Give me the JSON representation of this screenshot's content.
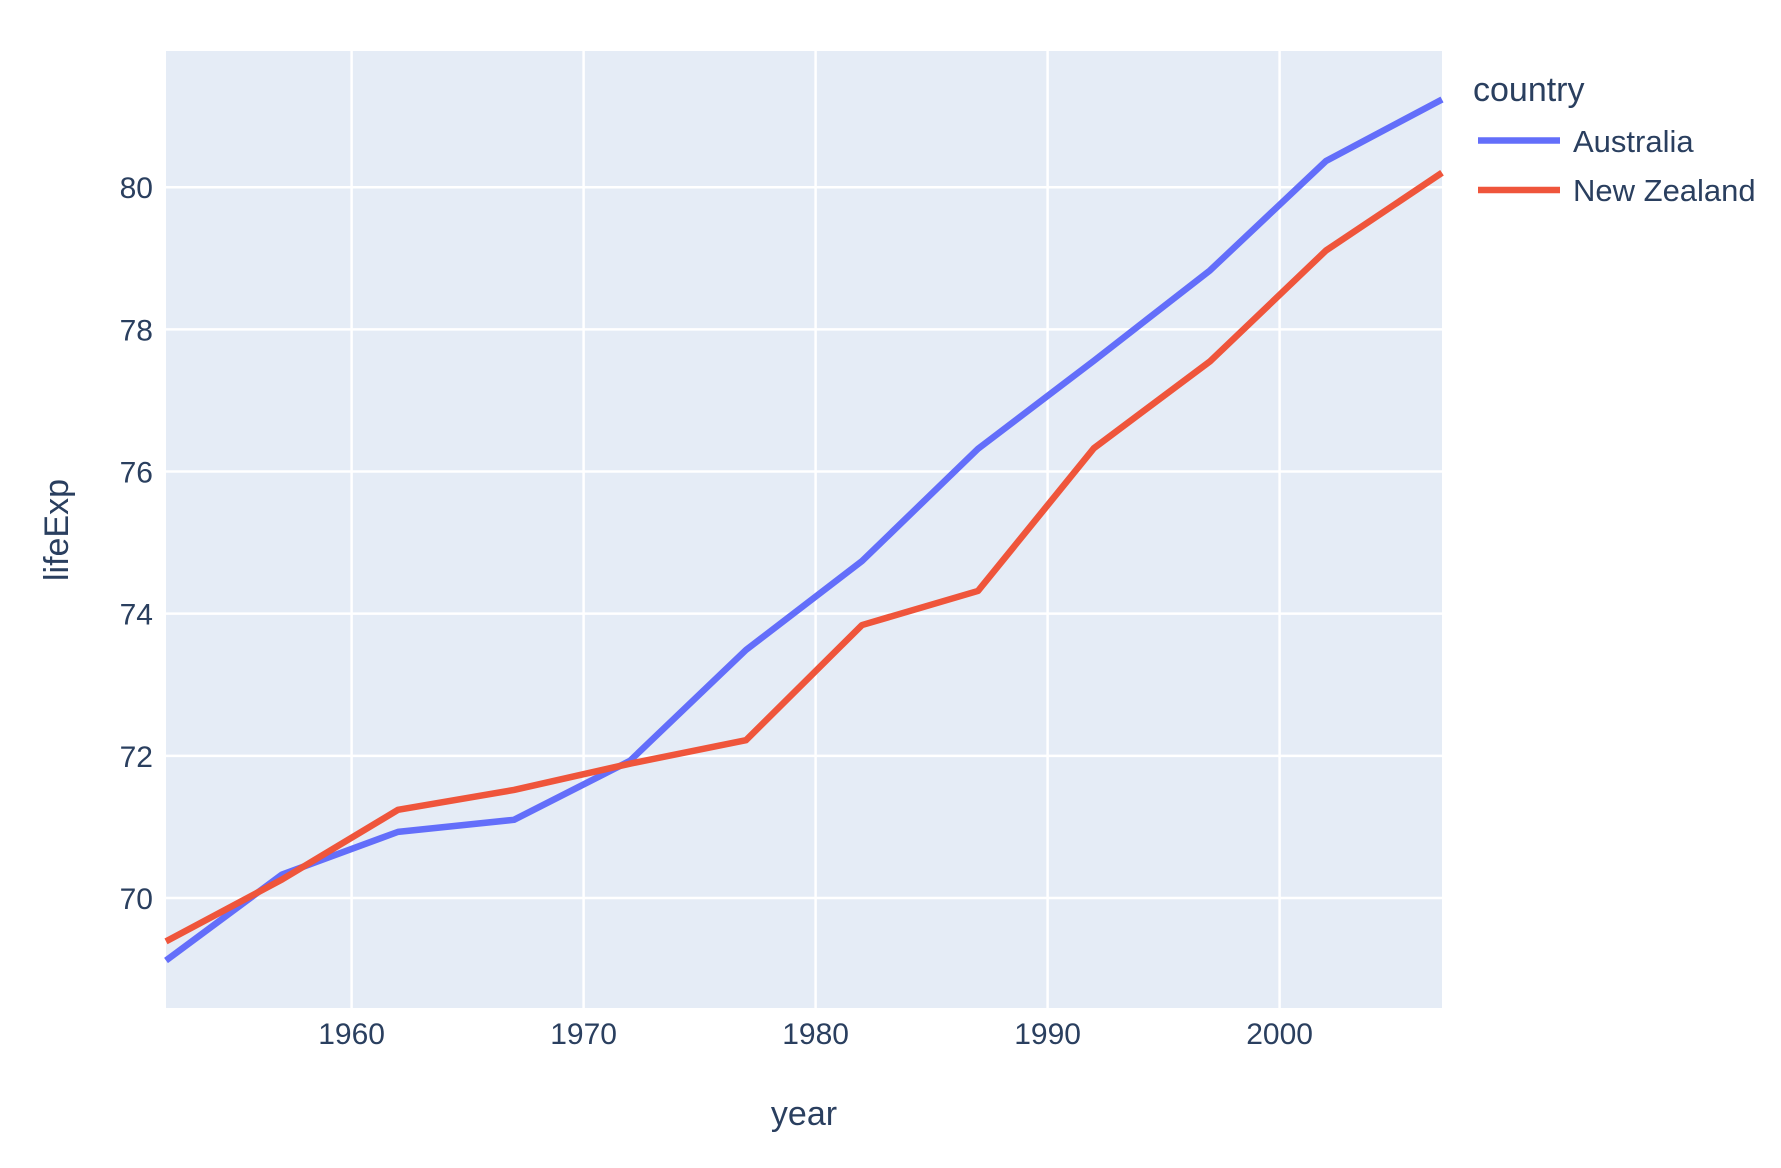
{
  "chart_data": {
    "type": "line",
    "title": "",
    "xlabel": "year",
    "ylabel": "lifeExp",
    "legend_title": "country",
    "legend_position": "right",
    "grid": true,
    "x": [
      1952,
      1957,
      1962,
      1967,
      1972,
      1977,
      1982,
      1987,
      1992,
      1997,
      2002,
      2007
    ],
    "series": [
      {
        "name": "Australia",
        "color": "#636EFA",
        "values": [
          69.12,
          70.33,
          70.93,
          71.1,
          71.93,
          73.49,
          74.74,
          76.32,
          77.56,
          78.83,
          80.37,
          81.235
        ]
      },
      {
        "name": "New Zealand",
        "color": "#EF553B",
        "values": [
          69.39,
          70.26,
          71.24,
          71.52,
          71.89,
          72.22,
          73.84,
          74.32,
          76.33,
          77.55,
          79.11,
          80.204
        ]
      }
    ],
    "x_ticks": [
      1960,
      1970,
      1980,
      1990,
      2000
    ],
    "y_ticks": [
      70,
      72,
      74,
      76,
      78,
      80
    ],
    "x_range": [
      1952,
      2007
    ],
    "y_range": [
      68.452,
      81.917
    ],
    "plot_bg": "#E5ECF6",
    "grid_color": "#FFFFFF",
    "text_color": "#2a3f5f",
    "line_width": 6.5
  }
}
